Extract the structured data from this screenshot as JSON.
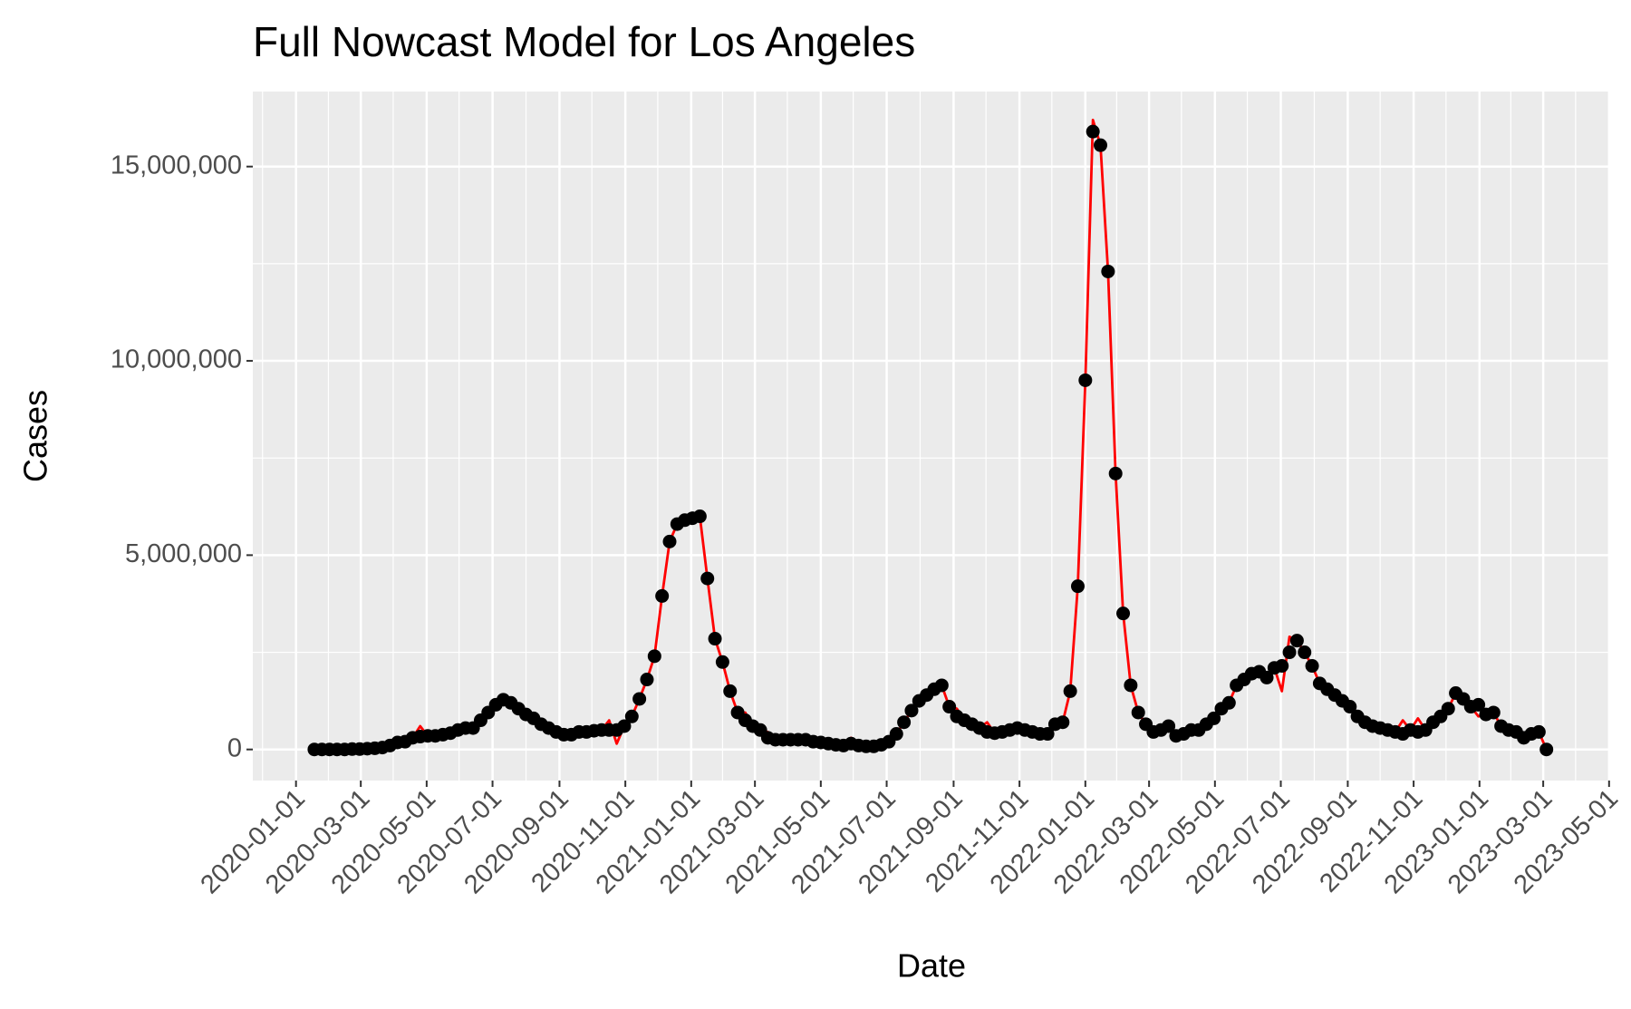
{
  "chart_data": {
    "type": "line",
    "title": "Full Nowcast Model for Los Angeles",
    "x_label": "Date",
    "y_label": "Cases",
    "x": [
      "2020-01-18",
      "2020-01-25",
      "2020-02-01",
      "2020-02-08",
      "2020-02-15",
      "2020-02-22",
      "2020-02-29",
      "2020-03-07",
      "2020-03-14",
      "2020-03-21",
      "2020-03-28",
      "2020-04-04",
      "2020-04-11",
      "2020-04-18",
      "2020-04-25",
      "2020-05-02",
      "2020-05-09",
      "2020-05-16",
      "2020-05-23",
      "2020-05-30",
      "2020-06-06",
      "2020-06-13",
      "2020-06-20",
      "2020-06-27",
      "2020-07-04",
      "2020-07-11",
      "2020-07-18",
      "2020-07-25",
      "2020-08-01",
      "2020-08-08",
      "2020-08-15",
      "2020-08-22",
      "2020-08-29",
      "2020-09-05",
      "2020-09-12",
      "2020-09-19",
      "2020-09-26",
      "2020-10-03",
      "2020-10-10",
      "2020-10-17",
      "2020-10-24",
      "2020-10-31",
      "2020-11-07",
      "2020-11-14",
      "2020-11-21",
      "2020-11-28",
      "2020-12-05",
      "2020-12-12",
      "2020-12-19",
      "2020-12-26",
      "2021-01-02",
      "2021-01-09",
      "2021-01-16",
      "2021-01-23",
      "2021-01-30",
      "2021-02-06",
      "2021-02-13",
      "2021-02-20",
      "2021-02-27",
      "2021-03-06",
      "2021-03-13",
      "2021-03-20",
      "2021-03-27",
      "2021-04-03",
      "2021-04-10",
      "2021-04-17",
      "2021-04-24",
      "2021-05-01",
      "2021-05-08",
      "2021-05-15",
      "2021-05-22",
      "2021-05-29",
      "2021-06-05",
      "2021-06-12",
      "2021-06-19",
      "2021-06-26",
      "2021-07-03",
      "2021-07-10",
      "2021-07-17",
      "2021-07-24",
      "2021-07-31",
      "2021-08-07",
      "2021-08-14",
      "2021-08-21",
      "2021-08-28",
      "2021-09-04",
      "2021-09-11",
      "2021-09-18",
      "2021-09-25",
      "2021-10-02",
      "2021-10-09",
      "2021-10-16",
      "2021-10-23",
      "2021-10-30",
      "2021-11-06",
      "2021-11-13",
      "2021-11-20",
      "2021-11-27",
      "2021-12-04",
      "2021-12-11",
      "2021-12-18",
      "2021-12-25",
      "2022-01-01",
      "2022-01-08",
      "2022-01-15",
      "2022-01-22",
      "2022-01-29",
      "2022-02-05",
      "2022-02-12",
      "2022-02-19",
      "2022-02-26",
      "2022-03-05",
      "2022-03-12",
      "2022-03-19",
      "2022-03-26",
      "2022-04-02",
      "2022-04-09",
      "2022-04-16",
      "2022-04-23",
      "2022-04-30",
      "2022-05-07",
      "2022-05-14",
      "2022-05-21",
      "2022-05-28",
      "2022-06-04",
      "2022-06-11",
      "2022-06-18",
      "2022-06-25",
      "2022-07-02",
      "2022-07-09",
      "2022-07-16",
      "2022-07-23",
      "2022-07-30",
      "2022-08-06",
      "2022-08-13",
      "2022-08-20",
      "2022-08-27",
      "2022-09-03",
      "2022-09-10",
      "2022-09-17",
      "2022-09-24",
      "2022-10-01",
      "2022-10-08",
      "2022-10-15",
      "2022-10-22",
      "2022-10-29",
      "2022-11-05",
      "2022-11-12",
      "2022-11-19",
      "2022-11-26",
      "2022-12-03",
      "2022-12-10",
      "2022-12-17",
      "2022-12-24",
      "2022-12-31",
      "2023-01-07",
      "2023-01-14",
      "2023-01-21",
      "2023-01-28",
      "2023-02-04",
      "2023-02-11",
      "2023-02-18",
      "2023-02-25",
      "2023-03-04"
    ],
    "series": [
      {
        "color": "#ff0000",
        "style": "line",
        "values": [
          0,
          0,
          0,
          0,
          0,
          10000,
          10000,
          20000,
          30000,
          50000,
          100000,
          180000,
          200000,
          300000,
          600000,
          350000,
          350000,
          380000,
          420000,
          500000,
          550000,
          550000,
          750000,
          950000,
          1150000,
          1280000,
          1200000,
          1050000,
          900000,
          800000,
          650000,
          550000,
          450000,
          380000,
          380000,
          450000,
          450000,
          480000,
          500000,
          750000,
          150000,
          600000,
          850000,
          1300000,
          1800000,
          2400000,
          3950000,
          5350000,
          5800000,
          5900000,
          5950000,
          6000000,
          4400000,
          2850000,
          2250000,
          1500000,
          950000,
          950000,
          600000,
          500000,
          450000,
          250000,
          250000,
          250000,
          250000,
          250000,
          200000,
          180000,
          150000,
          120000,
          100000,
          300000,
          100000,
          80000,
          80000,
          120000,
          200000,
          400000,
          700000,
          1000000,
          1250000,
          1400000,
          1550000,
          1650000,
          1100000,
          1050000,
          750000,
          650000,
          550000,
          700000,
          420000,
          450000,
          500000,
          550000,
          500000,
          450000,
          400000,
          400000,
          650000,
          700000,
          1500000,
          4200000,
          9500000,
          16200000,
          15550000,
          12300000,
          7100000,
          3500000,
          1650000,
          950000,
          650000,
          450000,
          500000,
          600000,
          350000,
          400000,
          500000,
          500000,
          650000,
          800000,
          1050000,
          1200000,
          1650000,
          1800000,
          1950000,
          2000000,
          1850000,
          2100000,
          1500000,
          2900000,
          2800000,
          2500000,
          2150000,
          1700000,
          1550000,
          1400000,
          1250000,
          1100000,
          850000,
          700000,
          600000,
          550000,
          500000,
          450000,
          750000,
          500000,
          800000,
          500000,
          700000,
          850000,
          1050000,
          1450000,
          1300000,
          1100000,
          850000,
          900000,
          950000,
          600000,
          500000,
          450000,
          300000,
          400000,
          450000,
          0
        ]
      },
      {
        "color": "#000000",
        "style": "points",
        "values": [
          0,
          0,
          0,
          0,
          0,
          10000,
          10000,
          20000,
          30000,
          50000,
          100000,
          180000,
          200000,
          300000,
          330000,
          350000,
          350000,
          380000,
          420000,
          500000,
          550000,
          550000,
          750000,
          950000,
          1150000,
          1280000,
          1200000,
          1050000,
          900000,
          800000,
          650000,
          550000,
          450000,
          380000,
          380000,
          450000,
          450000,
          480000,
          500000,
          500000,
          500000,
          600000,
          850000,
          1300000,
          1800000,
          2400000,
          3950000,
          5350000,
          5800000,
          5900000,
          5950000,
          6000000,
          4400000,
          2850000,
          2250000,
          1500000,
          950000,
          750000,
          600000,
          500000,
          300000,
          250000,
          250000,
          250000,
          250000,
          250000,
          200000,
          180000,
          150000,
          120000,
          100000,
          150000,
          100000,
          80000,
          80000,
          120000,
          200000,
          400000,
          700000,
          1000000,
          1250000,
          1400000,
          1550000,
          1650000,
          1100000,
          850000,
          750000,
          650000,
          550000,
          450000,
          420000,
          450000,
          500000,
          550000,
          500000,
          450000,
          400000,
          400000,
          650000,
          700000,
          1500000,
          4200000,
          9500000,
          15900000,
          15550000,
          12300000,
          7100000,
          3500000,
          1650000,
          950000,
          650000,
          450000,
          500000,
          600000,
          350000,
          400000,
          500000,
          500000,
          650000,
          800000,
          1050000,
          1200000,
          1650000,
          1800000,
          1950000,
          2000000,
          1850000,
          2100000,
          2150000,
          2500000,
          2800000,
          2500000,
          2150000,
          1700000,
          1550000,
          1400000,
          1250000,
          1100000,
          850000,
          700000,
          600000,
          550000,
          500000,
          450000,
          400000,
          500000,
          450000,
          500000,
          700000,
          850000,
          1050000,
          1450000,
          1300000,
          1100000,
          1150000,
          900000,
          950000,
          600000,
          500000,
          450000,
          300000,
          400000,
          450000,
          0
        ]
      }
    ],
    "xlim": [
      "2019-11-22",
      "2023-05-02"
    ],
    "xticks": [
      "2020-01-01",
      "2020-03-01",
      "2020-05-01",
      "2020-07-01",
      "2020-09-01",
      "2020-11-01",
      "2021-01-01",
      "2021-03-01",
      "2021-05-01",
      "2021-07-01",
      "2021-09-01",
      "2021-11-01",
      "2022-01-01",
      "2022-03-01",
      "2022-05-01",
      "2022-07-01",
      "2022-09-01",
      "2022-11-01",
      "2023-01-01",
      "2023-03-01",
      "2023-05-01"
    ],
    "x_minor_ticks": [
      "2019-12-01",
      "2020-01-31",
      "2020-03-31",
      "2020-05-31",
      "2020-08-01",
      "2020-10-01",
      "2020-12-01",
      "2021-01-30",
      "2021-03-31",
      "2021-05-31",
      "2021-08-01",
      "2021-10-01",
      "2021-12-01",
      "2022-01-30",
      "2022-03-31",
      "2022-05-31",
      "2022-08-01",
      "2022-10-01",
      "2022-12-01",
      "2023-01-30",
      "2023-03-31"
    ],
    "ylim": [
      -800000,
      16930000
    ],
    "yticks": [
      0,
      {
        "value": 5000000,
        "label": "5,000,000"
      },
      {
        "value": 10000000,
        "label": "10,000,000"
      },
      {
        "value": 15000000,
        "label": "15,000,000"
      }
    ],
    "y_minor_ticks": [
      2500000,
      7500000,
      12500000
    ],
    "grid": true,
    "panel_color": "#ebebeb"
  }
}
